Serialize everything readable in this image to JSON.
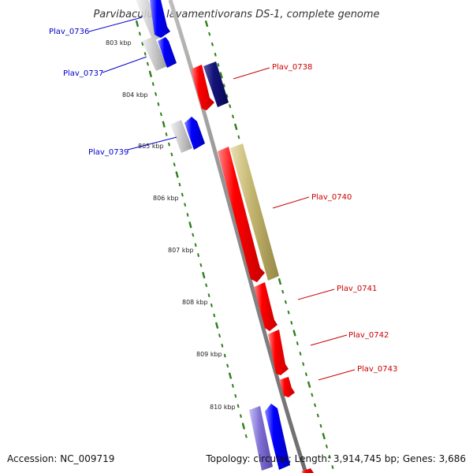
{
  "title": "Parvibaculum lavamentivorans DS-1, complete genome",
  "footer": {
    "accession": "Accession: NC_009719",
    "summary": "Topology: circular; Length: 3,914,745 bp; Genes: 3,686"
  },
  "ticks": [
    "803 kbp",
    "804 kbp",
    "805 kbp",
    "806 kbp",
    "807 kbp",
    "808 kbp",
    "809 kbp",
    "810 kbp"
  ],
  "genes_left": [
    {
      "label": "Plav_0736",
      "color": "#0000cc"
    },
    {
      "label": "Plav_0737",
      "color": "#0000cc"
    },
    {
      "label": "Plav_0739",
      "color": "#0000cc"
    }
  ],
  "genes_right": [
    {
      "label": "Plav_0738",
      "color": "#cc0000"
    },
    {
      "label": "Plav_0740",
      "color": "#cc0000"
    },
    {
      "label": "Plav_0741",
      "color": "#cc0000"
    },
    {
      "label": "Plav_0742",
      "color": "#cc0000"
    },
    {
      "label": "Plav_0743",
      "color": "#cc0000"
    }
  ],
  "colors": {
    "backbone": "#8a8a8a",
    "tick_marks": "#2f7d1a",
    "forward_gene": "#0000ff",
    "reverse_gene": "#ff0000",
    "grey_gene": "#bdbdbd",
    "navy_gene": "#0a0a6a",
    "olive_gene": "#c2b46e",
    "purple_gene": "#7f6fd0"
  }
}
